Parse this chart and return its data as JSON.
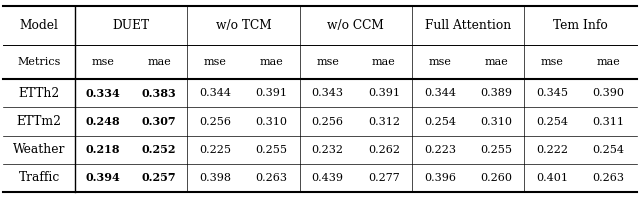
{
  "col_groups": [
    {
      "label": "DUET"
    },
    {
      "label": "w/o TCM"
    },
    {
      "label": "w/o CCM"
    },
    {
      "label": "Full Attention"
    },
    {
      "label": "Tem Info"
    }
  ],
  "row_labels": [
    "ETTh2",
    "ETTm2",
    "Weather",
    "Traffic"
  ],
  "data": [
    [
      "0.334",
      "0.383",
      "0.344",
      "0.391",
      "0.343",
      "0.391",
      "0.344",
      "0.389",
      "0.345",
      "0.390"
    ],
    [
      "0.248",
      "0.307",
      "0.256",
      "0.310",
      "0.256",
      "0.312",
      "0.254",
      "0.310",
      "0.254",
      "0.311"
    ],
    [
      "0.218",
      "0.252",
      "0.225",
      "0.255",
      "0.232",
      "0.262",
      "0.223",
      "0.255",
      "0.222",
      "0.254"
    ],
    [
      "0.394",
      "0.257",
      "0.398",
      "0.263",
      "0.439",
      "0.277",
      "0.396",
      "0.260",
      "0.401",
      "0.263"
    ]
  ],
  "bold_mask": [
    [
      true,
      true,
      false,
      false,
      false,
      false,
      false,
      false,
      false,
      false
    ],
    [
      true,
      true,
      false,
      false,
      false,
      false,
      false,
      false,
      false,
      false
    ],
    [
      true,
      true,
      false,
      false,
      false,
      false,
      false,
      false,
      false,
      false
    ],
    [
      true,
      true,
      false,
      false,
      false,
      false,
      false,
      false,
      false,
      false
    ]
  ],
  "bg_color": "#ffffff",
  "figsize": [
    6.4,
    1.98
  ],
  "dpi": 100
}
